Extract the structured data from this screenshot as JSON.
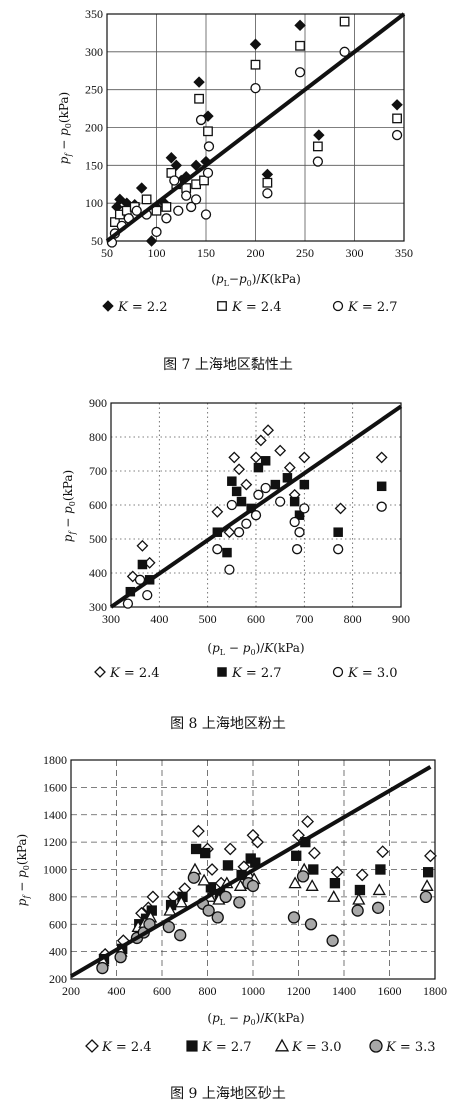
{
  "chart_data": [
    {
      "type": "scatter",
      "caption": "图 7   上海地区黏性土",
      "xlabel": "(p_L − p_0)/K (kPa)",
      "ylabel": "p_f − p_0 (kPa)",
      "xlim": [
        50,
        350
      ],
      "ylim": [
        50,
        350
      ],
      "xticks": [
        50,
        100,
        150,
        200,
        250,
        300,
        350
      ],
      "yticks": [
        50,
        100,
        150,
        200,
        250,
        300,
        350
      ],
      "grid": "solid",
      "trend_line": [
        [
          50,
          50
        ],
        [
          350,
          350
        ]
      ],
      "series": [
        {
          "name": "K = 2.2",
          "marker": "diamond-filled",
          "points": [
            [
              60,
              95
            ],
            [
              63,
              105
            ],
            [
              70,
              100
            ],
            [
              78,
              98
            ],
            [
              85,
              120
            ],
            [
              95,
              50
            ],
            [
              100,
              95
            ],
            [
              108,
              100
            ],
            [
              115,
              160
            ],
            [
              120,
              150
            ],
            [
              125,
              130
            ],
            [
              130,
              135
            ],
            [
              140,
              150
            ],
            [
              143,
              260
            ],
            [
              150,
              155
            ],
            [
              152,
              215
            ],
            [
              200,
              310
            ],
            [
              212,
              138
            ],
            [
              245,
              335
            ],
            [
              264,
              190
            ],
            [
              343,
              230
            ]
          ]
        },
        {
          "name": "K = 2.4",
          "marker": "square-open",
          "points": [
            [
              58,
              75
            ],
            [
              63,
              85
            ],
            [
              70,
              90
            ],
            [
              78,
              95
            ],
            [
              90,
              105
            ],
            [
              100,
              90
            ],
            [
              110,
              95
            ],
            [
              115,
              140
            ],
            [
              120,
              125
            ],
            [
              130,
              120
            ],
            [
              140,
              125
            ],
            [
              143,
              238
            ],
            [
              148,
              130
            ],
            [
              152,
              195
            ],
            [
              200,
              283
            ],
            [
              212,
              127
            ],
            [
              245,
              308
            ],
            [
              263,
              175
            ],
            [
              290,
              340
            ],
            [
              343,
              212
            ]
          ]
        },
        {
          "name": "K = 2.7",
          "marker": "circle-open",
          "points": [
            [
              55,
              48
            ],
            [
              58,
              60
            ],
            [
              65,
              70
            ],
            [
              72,
              80
            ],
            [
              80,
              90
            ],
            [
              90,
              85
            ],
            [
              100,
              62
            ],
            [
              110,
              80
            ],
            [
              118,
              130
            ],
            [
              122,
              90
            ],
            [
              130,
              110
            ],
            [
              135,
              95
            ],
            [
              140,
              105
            ],
            [
              145,
              210
            ],
            [
              150,
              85
            ],
            [
              152,
              140
            ],
            [
              153,
              175
            ],
            [
              200,
              252
            ],
            [
              212,
              113
            ],
            [
              245,
              273
            ],
            [
              263,
              155
            ],
            [
              290,
              300
            ],
            [
              343,
              190
            ]
          ]
        }
      ]
    },
    {
      "type": "scatter",
      "caption": "图 8   上海地区粉土",
      "xlabel": "(p_L − p_0)/K (kPa)",
      "ylabel": "p_f − p_0 (kPa)",
      "xlim": [
        300,
        900
      ],
      "ylim": [
        300,
        900
      ],
      "xticks": [
        300,
        400,
        500,
        600,
        700,
        800,
        900
      ],
      "yticks": [
        300,
        400,
        500,
        600,
        700,
        800,
        900
      ],
      "grid": "dotted",
      "trend_line": [
        [
          300,
          300
        ],
        [
          900,
          890
        ]
      ],
      "series": [
        {
          "name": "K = 2.4",
          "marker": "diamond-open",
          "points": [
            [
              345,
              390
            ],
            [
              365,
              480
            ],
            [
              380,
              430
            ],
            [
              520,
              580
            ],
            [
              545,
              520
            ],
            [
              555,
              740
            ],
            [
              565,
              705
            ],
            [
              580,
              660
            ],
            [
              600,
              740
            ],
            [
              610,
              790
            ],
            [
              625,
              820
            ],
            [
              650,
              760
            ],
            [
              670,
              710
            ],
            [
              680,
              630
            ],
            [
              700,
              740
            ],
            [
              775,
              590
            ],
            [
              860,
              740
            ]
          ]
        },
        {
          "name": "K = 2.7",
          "marker": "square-filled",
          "points": [
            [
              340,
              345
            ],
            [
              365,
              425
            ],
            [
              380,
              380
            ],
            [
              520,
              520
            ],
            [
              540,
              460
            ],
            [
              550,
              670
            ],
            [
              560,
              640
            ],
            [
              570,
              610
            ],
            [
              590,
              590
            ],
            [
              605,
              710
            ],
            [
              620,
              730
            ],
            [
              640,
              660
            ],
            [
              665,
              680
            ],
            [
              680,
              610
            ],
            [
              690,
              570
            ],
            [
              700,
              660
            ],
            [
              770,
              520
            ],
            [
              860,
              655
            ]
          ]
        },
        {
          "name": "K = 3.0",
          "marker": "circle-open",
          "points": [
            [
              335,
              310
            ],
            [
              360,
              380
            ],
            [
              375,
              335
            ],
            [
              520,
              470
            ],
            [
              545,
              410
            ],
            [
              550,
              600
            ],
            [
              565,
              520
            ],
            [
              580,
              545
            ],
            [
              600,
              570
            ],
            [
              605,
              630
            ],
            [
              620,
              650
            ],
            [
              650,
              610
            ],
            [
              680,
              550
            ],
            [
              685,
              470
            ],
            [
              690,
              520
            ],
            [
              700,
              590
            ],
            [
              770,
              470
            ],
            [
              860,
              595
            ]
          ]
        }
      ]
    },
    {
      "type": "scatter",
      "caption": "图 9   上海地区砂土",
      "xlabel": "(p_L − p_0)/K (kPa)",
      "ylabel": "p_f − p_0 (kPa)",
      "xlim": [
        200,
        1800
      ],
      "ylim": [
        200,
        1800
      ],
      "xticks": [
        200,
        400,
        600,
        800,
        1000,
        1200,
        1400,
        1600,
        1800
      ],
      "yticks": [
        200,
        400,
        600,
        800,
        1000,
        1200,
        1400,
        1600,
        1800
      ],
      "grid": "dashed",
      "trend_line": [
        [
          200,
          220
        ],
        [
          1780,
          1750
        ]
      ],
      "series": [
        {
          "name": "K = 2.4",
          "marker": "diamond-open",
          "points": [
            [
              350,
              380
            ],
            [
              430,
              480
            ],
            [
              510,
              680
            ],
            [
              540,
              720
            ],
            [
              560,
              800
            ],
            [
              650,
              800
            ],
            [
              700,
              860
            ],
            [
              760,
              1280
            ],
            [
              800,
              1150
            ],
            [
              820,
              1000
            ],
            [
              860,
              900
            ],
            [
              900,
              1150
            ],
            [
              960,
              1020
            ],
            [
              1000,
              1250
            ],
            [
              1020,
              1200
            ],
            [
              1200,
              1250
            ],
            [
              1240,
              1350
            ],
            [
              1270,
              1120
            ],
            [
              1370,
              980
            ],
            [
              1480,
              960
            ],
            [
              1570,
              1130
            ],
            [
              1780,
              1100
            ]
          ]
        },
        {
          "name": "K = 2.7",
          "marker": "square-filled",
          "points": [
            [
              345,
              345
            ],
            [
              425,
              420
            ],
            [
              500,
              600
            ],
            [
              530,
              640
            ],
            [
              555,
              700
            ],
            [
              640,
              740
            ],
            [
              690,
              800
            ],
            [
              750,
              1150
            ],
            [
              790,
              1120
            ],
            [
              815,
              870
            ],
            [
              855,
              820
            ],
            [
              890,
              1030
            ],
            [
              950,
              960
            ],
            [
              990,
              1080
            ],
            [
              1010,
              1050
            ],
            [
              1190,
              1100
            ],
            [
              1230,
              1200
            ],
            [
              1265,
              1000
            ],
            [
              1360,
              900
            ],
            [
              1470,
              850
            ],
            [
              1560,
              1000
            ],
            [
              1770,
              980
            ]
          ]
        },
        {
          "name": "K = 3.0",
          "marker": "triangle-open",
          "points": [
            [
              340,
              330
            ],
            [
              420,
              400
            ],
            [
              495,
              580
            ],
            [
              525,
              610
            ],
            [
              550,
              650
            ],
            [
              635,
              700
            ],
            [
              685,
              760
            ],
            [
              745,
              1000
            ],
            [
              785,
              920
            ],
            [
              810,
              800
            ],
            [
              850,
              780
            ],
            [
              885,
              900
            ],
            [
              945,
              880
            ],
            [
              985,
              950
            ],
            [
              1005,
              930
            ],
            [
              1185,
              900
            ],
            [
              1225,
              1000
            ],
            [
              1260,
              880
            ],
            [
              1355,
              800
            ],
            [
              1465,
              780
            ],
            [
              1555,
              850
            ],
            [
              1765,
              880
            ]
          ]
        },
        {
          "name": "K = 3.3",
          "marker": "circle-gray",
          "points": [
            [
              338,
              280
            ],
            [
              418,
              360
            ],
            [
              490,
              500
            ],
            [
              520,
              540
            ],
            [
              545,
              600
            ],
            [
              630,
              580
            ],
            [
              680,
              520
            ],
            [
              740,
              940
            ],
            [
              780,
              750
            ],
            [
              805,
              700
            ],
            [
              845,
              650
            ],
            [
              880,
              800
            ],
            [
              940,
              760
            ],
            [
              980,
              900
            ],
            [
              1000,
              880
            ],
            [
              1180,
              650
            ],
            [
              1220,
              950
            ],
            [
              1255,
              600
            ],
            [
              1350,
              480
            ],
            [
              1460,
              700
            ],
            [
              1550,
              720
            ],
            [
              1760,
              800
            ]
          ]
        }
      ]
    }
  ],
  "captions": {
    "fig7": "图 7   上海地区黏性土",
    "fig8": "图 8   上海地区粉土",
    "fig9": "图 9   上海地区砂土"
  },
  "axis_titles": {
    "ylabel": "p_f − p_0 (kPa)",
    "xlabel": "(p_L − p_0)/K (kPa)"
  },
  "legends": {
    "fig7": [
      "K = 2.2",
      "K = 2.4",
      "K = 2.7"
    ],
    "fig8": [
      "K = 2.4",
      "K = 2.7",
      "K = 3.0"
    ],
    "fig9": [
      "K = 2.4",
      "K = 2.7",
      "K = 3.0",
      "K = 3.3"
    ]
  },
  "colors": {
    "marker_fill_dark": "#111111",
    "marker_fill_gray": "#a8a8a8",
    "grid": "#555555",
    "trend": "#111111"
  }
}
